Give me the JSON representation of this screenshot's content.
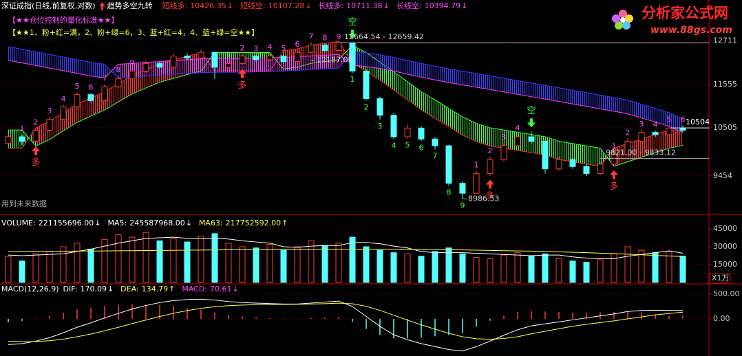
{
  "logo": {
    "name": "分析家公式网",
    "url": "www.88gs.com"
  },
  "chart_data": [
    {
      "type": "candlestick",
      "title": "深证成指(日线,前复权,对数)",
      "indicator": "趋势多空九转",
      "log_scale": true,
      "ylim": [
        8765,
        13910
      ],
      "yticks": [
        12711,
        11555,
        10505,
        9454
      ],
      "grid": true,
      "up_color": "#ff3c3c",
      "down_color": "#54ffff",
      "open": [
        10150,
        10300,
        10200,
        10450,
        10700,
        11000,
        11300,
        11150,
        11500,
        11700,
        11900,
        12100,
        12000,
        12300,
        12250,
        12400,
        12000,
        12100,
        12300,
        12200,
        12300,
        12150,
        12400,
        12600,
        12450,
        12650,
        11900,
        11200,
        10800,
        10300,
        10500,
        10250,
        10100,
        9300,
        9100,
        9500,
        9800,
        10100,
        10300,
        10200,
        9600,
        9800,
        9650,
        9500,
        9700,
        9900,
        10200,
        10400,
        10350,
        10500
      ],
      "high": [
        10380,
        10350,
        10500,
        10760,
        11050,
        11360,
        11340,
        11560,
        11780,
        11960,
        12180,
        12150,
        12360,
        12380,
        12480,
        12420,
        12180,
        12360,
        12340,
        12380,
        12350,
        12460,
        12680,
        12640,
        12664.54,
        12659.42,
        11950,
        11250,
        10850,
        10580,
        10540,
        10300,
        10120,
        9350,
        9560,
        9860,
        10160,
        10360,
        10420,
        10230,
        9860,
        9840,
        9700,
        9760,
        9960,
        10260,
        10460,
        10450,
        10560,
        10560
      ],
      "low": [
        10080,
        10120,
        10180,
        10420,
        10680,
        10960,
        11100,
        11120,
        11460,
        11650,
        11860,
        11950,
        11980,
        12180,
        12200,
        11700,
        11950,
        12060,
        12140,
        12160,
        12100,
        12120,
        12380,
        12400,
        12420,
        11850,
        11150,
        10700,
        10250,
        10260,
        10200,
        10020,
        9250,
        8986.53,
        9080,
        9460,
        9760,
        10060,
        10150,
        9500,
        9560,
        9600,
        9450,
        9470,
        9660,
        9880,
        10180,
        10300,
        10320,
        10400
      ],
      "close": [
        10300,
        10200,
        10450,
        10700,
        11000,
        11300,
        11150,
        11500,
        11700,
        11900,
        12100,
        12000,
        12300,
        12250,
        12400,
        12000,
        12100,
        12300,
        12200,
        12300,
        12150,
        12400,
        12600,
        12450,
        12660,
        11900,
        11200,
        10800,
        10300,
        10500,
        10250,
        10100,
        9300,
        9100,
        9500,
        9800,
        10100,
        10300,
        10200,
        9600,
        9800,
        9650,
        9500,
        9700,
        9900,
        10200,
        10400,
        10350,
        10500,
        10450
      ],
      "series": [
        {
          "name": "短线多:",
          "arrow": "↓",
          "color": "#ff4040",
          "band_color": "#ff3030",
          "values": [
            10045,
            10045,
            10506,
            10659,
            10863,
            11067,
            11220,
            11373,
            11577,
            11781,
            11934,
            12087,
            12189,
            12291,
            12393,
            11907,
            11907,
            11907,
            11907,
            11907,
            12444,
            12495,
            12597,
            12648,
            12699,
            12103,
            11907,
            11662,
            11417,
            11172,
            10927,
            10731,
            10535,
            10339,
            10192,
            10094,
            10045,
            9996,
            9947,
            9898,
            9800,
            9751,
            9702,
            9653,
            10047,
            10149,
            10251,
            10353,
            10455,
            10426.35
          ]
        },
        {
          "name": "短线空:",
          "arrow": "↓",
          "color": "#ff4040",
          "band_color": "#40ff40",
          "values": [
            10455,
            10455,
            10094,
            10241,
            10437,
            10633,
            10780,
            10927,
            11123,
            11319,
            11466,
            11613,
            11711,
            11809,
            11907,
            12393,
            12393,
            12393,
            12393,
            12393,
            11956,
            12005,
            12103,
            12152,
            12201,
            12597,
            12393,
            12138,
            11883,
            11628,
            11373,
            11169,
            10965,
            10761,
            10608,
            10506,
            10455,
            10404,
            10353,
            10302,
            10200,
            10149,
            10098,
            10047,
            9653,
            9751,
            9849,
            9947,
            10045,
            10107.28
          ]
        },
        {
          "name": "长线多:",
          "arrow": "↓",
          "color": "#ff50ff",
          "band_color": "#3c3cff",
          "values": [
            12556,
            12485,
            12413,
            12342,
            12271,
            12200,
            12129,
            12079,
            11722,
            11741,
            11771,
            11790,
            11820,
            11840,
            11859,
            11869,
            11869,
            11869,
            11879,
            11889,
            11899,
            11919,
            11938,
            11958,
            11978,
            12434,
            12383,
            12332,
            12261,
            12180,
            12099,
            12028,
            11957,
            11896,
            11835,
            11774,
            11713,
            11652,
            11591,
            11530,
            11470,
            11409,
            11348,
            11287,
            11226,
            11165,
            11064,
            10962,
            10861,
            10711.38
          ]
        },
        {
          "name": "长线空:",
          "arrow": "↓",
          "color": "#ff50ff",
          "band_color": "#ff40ff",
          "values": [
            12184,
            12116,
            12047,
            11978,
            11909,
            11840,
            11771,
            11722,
            12079,
            12099,
            12129,
            12150,
            12180,
            12200,
            12221,
            12231,
            12231,
            12231,
            12241,
            12251,
            12261,
            12282,
            12302,
            12322,
            12342,
            12066,
            12017,
            11968,
            11899,
            11820,
            11741,
            11672,
            11603,
            11544,
            11485,
            11426,
            11367,
            11308,
            11249,
            11190,
            11131,
            11071,
            11012,
            10953,
            10894,
            10835,
            10737,
            10638,
            10540,
            10394.79
          ]
        }
      ],
      "notes": [
        {
          "text": "【★★仓位控制的量化标准★★】",
          "color": "#ff50ff"
        },
        {
          "text": "【★★1、粉+红=满，2、粉+绿=6，3、蓝+红=4，4、蓝+绿=空★★】",
          "color": "#ffff54"
        }
      ],
      "footnote": "用到未来数据",
      "nine_turn": [
        {
          "start": 1,
          "side": "above",
          "color": "#ff50ff",
          "counts": [
            1,
            2,
            3,
            4,
            5,
            6,
            7,
            8,
            9
          ]
        },
        {
          "start": 16,
          "side": "above",
          "color": "#ff50ff",
          "counts": [
            1,
            2,
            3,
            4,
            5,
            6,
            7,
            8,
            9
          ]
        },
        {
          "start": 25,
          "side": "below",
          "color": "#3cff3c",
          "counts": [
            1,
            2,
            3,
            4,
            5,
            6,
            7,
            8,
            9
          ]
        },
        {
          "start": 34,
          "side": "above",
          "color": "#ff50ff",
          "counts": [
            1,
            2,
            3,
            4
          ]
        },
        {
          "start": 44,
          "side": "above",
          "color": "#ff50ff",
          "counts": [
            1,
            2,
            3,
            4,
            5,
            6
          ]
        }
      ],
      "signals": [
        {
          "index": 2,
          "label": "多",
          "side": "below",
          "color": "#ff3c3c"
        },
        {
          "index": 17,
          "label": "多",
          "side": "below",
          "color": "#ff3c3c"
        },
        {
          "index": 25,
          "label": "空",
          "side": "above",
          "color": "#3cff3c"
        },
        {
          "index": 35,
          "label": "多",
          "side": "below",
          "color": "#ff3c3c"
        },
        {
          "index": 38,
          "label": "空",
          "side": "above",
          "color": "#3cff3c"
        },
        {
          "index": 44,
          "label": "多",
          "side": "below",
          "color": "#ff3c3c"
        }
      ],
      "annotations": [
        {
          "text": "12187.06",
          "index": 22,
          "value": 12187.06,
          "line_right": false
        },
        {
          "text": "12664.54 - 12659.42",
          "index": 24,
          "value": 12664.54,
          "line_right": true
        },
        {
          "text": "8986.53",
          "index": 33,
          "value": 8986.53,
          "line_right": false
        },
        {
          "text": "9821.00 - 9833.12",
          "index": 43,
          "value": 9821.0,
          "line_right": true
        }
      ],
      "last_price": 10504
    },
    {
      "type": "bar",
      "unit": "X1万",
      "ylim": [
        0,
        53650
      ],
      "yticks": [
        15000,
        30000,
        45000
      ],
      "up_color": "#ff3c3c",
      "down_color": "#54ffff",
      "series": [
        {
          "name": "VOLUME:",
          "kind": "bar",
          "label": "221155696.00",
          "arrow": "↓",
          "color": "#ffffff",
          "values": [
            22000,
            18000,
            24000,
            26000,
            30000,
            33000,
            28000,
            36000,
            40000,
            38000,
            42000,
            35000,
            37000,
            34000,
            39000,
            41000,
            33000,
            30000,
            29000,
            32000,
            27000,
            30000,
            35000,
            31000,
            33000,
            38000,
            30000,
            27000,
            25000,
            24000,
            22000,
            26000,
            29000,
            24000,
            21000,
            20000,
            23000,
            25000,
            22000,
            24000,
            20000,
            18000,
            17000,
            19000,
            24000,
            30000,
            27000,
            25000,
            26000,
            22115.5696
          ]
        },
        {
          "name": "MA5:",
          "kind": "line",
          "label": "245587968.00",
          "arrow": "↓",
          "color": "#ffffff",
          "values": [
            23000,
            22500,
            23000,
            23500,
            24000,
            26000,
            28000,
            30500,
            33000,
            35000,
            37000,
            37500,
            38000,
            37000,
            37000,
            37000,
            36500,
            35000,
            34000,
            33000,
            30000,
            29500,
            30500,
            31000,
            31000,
            33500,
            33500,
            32500,
            30500,
            29000,
            26000,
            25000,
            25000,
            25000,
            24500,
            24000,
            23500,
            23000,
            22500,
            23000,
            23000,
            21500,
            20500,
            20000,
            20000,
            22000,
            23500,
            25000,
            26500,
            24558.7968
          ]
        },
        {
          "name": "MA63:",
          "kind": "line",
          "label": "217752592.00",
          "arrow": "↑",
          "color": "#ffff54",
          "values": [
            26000,
            26050,
            26100,
            26150,
            26200,
            26300,
            26400,
            26500,
            26600,
            26700,
            26800,
            26900,
            27000,
            27100,
            27200,
            27300,
            27400,
            27500,
            27550,
            27600,
            27650,
            27700,
            27750,
            27800,
            27850,
            27900,
            27900,
            27850,
            27800,
            27700,
            27600,
            27500,
            27400,
            27300,
            27100,
            26900,
            26700,
            26500,
            26300,
            26000,
            25700,
            25400,
            25000,
            24600,
            24200,
            23700,
            23200,
            22700,
            22200,
            21775.2592
          ]
        }
      ]
    },
    {
      "type": "macd",
      "title": "MACD(12,26,9)",
      "ylim": [
        -667,
        667
      ],
      "yticks": [
        {
          "value": 500,
          "label": "500.00"
        },
        {
          "value": 0,
          "label": "0.00"
        }
      ],
      "up_color": "#ff3c3c",
      "down_color": "#54ffff",
      "series": [
        {
          "name": "DIF:",
          "kind": "line",
          "arrow": "↓",
          "color": "#ffffff",
          "values": [
            -520,
            -500,
            -450,
            -380,
            -280,
            -170,
            -80,
            20,
            110,
            200,
            270,
            330,
            370,
            390,
            400,
            380,
            350,
            330,
            320,
            310,
            300,
            300,
            320,
            340,
            360,
            250,
            50,
            -150,
            -320,
            -420,
            -500,
            -560,
            -620,
            -650,
            -560,
            -450,
            -330,
            -220,
            -140,
            -100,
            -60,
            -20,
            20,
            60,
            100,
            150,
            170,
            175,
            172,
            170.09
          ]
        },
        {
          "name": "DEA:",
          "kind": "line",
          "arrow": "↑",
          "color": "#ffff54",
          "values": [
            -450,
            -460,
            -458,
            -442,
            -410,
            -362,
            -306,
            -240,
            -170,
            -96,
            -23,
            48,
            112,
            168,
            214,
            247,
            268,
            280,
            288,
            292,
            294,
            295,
            300,
            308,
            318,
            305,
            254,
            173,
            74,
            -25,
            -120,
            -208,
            -290,
            -362,
            -402,
            -412,
            -396,
            -361,
            -300,
            -250,
            -200,
            -150,
            -110,
            -75,
            -40,
            0,
            40,
            80,
            110,
            134.79
          ]
        },
        {
          "name": "MACD:",
          "kind": "bar",
          "arrow": "↓",
          "color": "#ff50ff",
          "values": [
            -70,
            -40,
            8,
            62,
            130,
            192,
            226,
            260,
            280,
            296,
            293,
            282,
            258,
            222,
            186,
            133,
            82,
            50,
            32,
            18,
            6,
            5,
            20,
            32,
            42,
            -55,
            -204,
            -323,
            -394,
            -395,
            -380,
            -352,
            -330,
            -288,
            -158,
            -38,
            66,
            141,
            160,
            150,
            140,
            130,
            130,
            135,
            140,
            150,
            130,
            95,
            62,
            70.61
          ]
        }
      ]
    }
  ]
}
